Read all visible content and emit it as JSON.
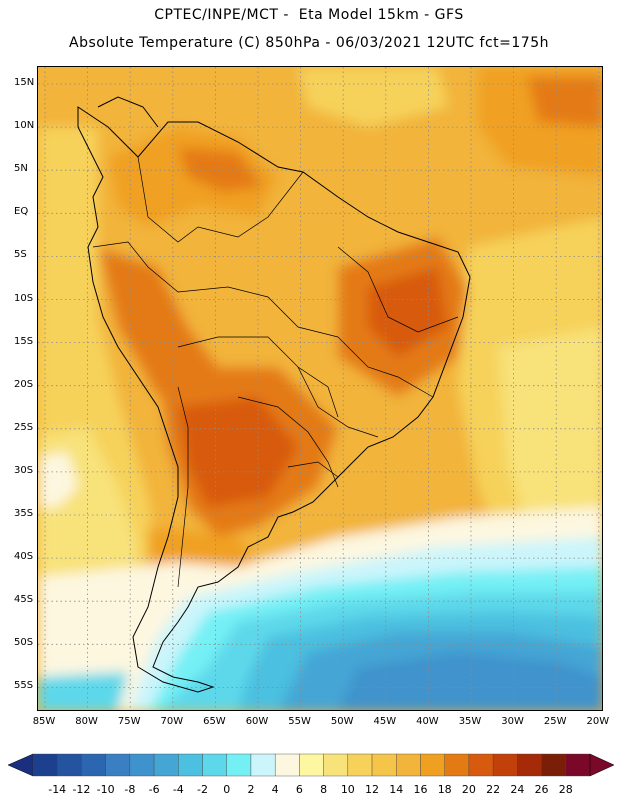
{
  "title_line1": "CPTEC/INPE/MCT -  Eta Model 15km - GFS",
  "title_line2": "Absolute Temperature (C) 850hPa - 06/03/2021 12UTC fct=175h",
  "lat_labels": [
    "15N",
    "10N",
    "5N",
    "EQ",
    "5S",
    "10S",
    "15S",
    "20S",
    "25S",
    "30S",
    "35S",
    "40S",
    "45S",
    "50S",
    "55S"
  ],
  "lon_labels": [
    "85W",
    "80W",
    "75W",
    "70W",
    "65W",
    "60W",
    "55W",
    "50W",
    "45W",
    "40W",
    "35W",
    "30W",
    "25W",
    "20W"
  ],
  "colorbar": {
    "labels": [
      "-14",
      "-12",
      "-10",
      "-8",
      "-6",
      "-4",
      "-2",
      "0",
      "2",
      "4",
      "6",
      "8",
      "10",
      "12",
      "14",
      "16",
      "18",
      "20",
      "22",
      "24",
      "26",
      "28"
    ],
    "colors": [
      "#1c3f8e",
      "#2453a0",
      "#2c66b0",
      "#3a7fc2",
      "#3f93cc",
      "#44a6d5",
      "#4cc0e0",
      "#5dd8ea",
      "#74f0f5",
      "#cbf5fb",
      "#fdf7e0",
      "#fcf7a0",
      "#f8e27a",
      "#f6d25a",
      "#f4c548",
      "#f2b43a",
      "#f0a020",
      "#e47a14",
      "#d85a0e",
      "#c2400a",
      "#a42a08",
      "#7a1e08",
      "#7a0828"
    ],
    "under_color": "#1a2f80",
    "over_color": "#7a0828"
  },
  "field_colors": {
    "base": "#f2b43a",
    "yellow": "#f6d25a",
    "pale_yellow": "#f8e27a",
    "cream": "#fdf7e0",
    "light_cyan": "#cbf5fb",
    "cyan": "#74f0f5",
    "sky": "#5dd8ea",
    "blue1": "#4cc0e0",
    "blue2": "#44a6d5",
    "blue3": "#3f93cc",
    "orange": "#f0a020",
    "dark_orange": "#e47a14",
    "red": "#d85a0e",
    "dark_red": "#c2400a"
  }
}
